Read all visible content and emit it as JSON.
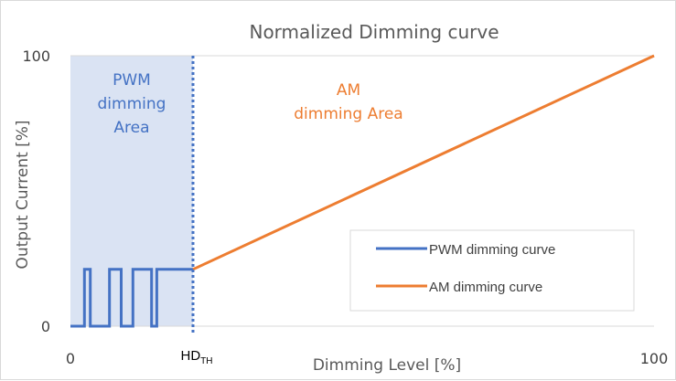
{
  "chart_data": {
    "type": "line",
    "title": "Normalized Dimming curve",
    "xlabel": "Dimming Level [%]",
    "ylabel": "Output Current [%]",
    "xlim": [
      0,
      100
    ],
    "ylim": [
      0,
      100
    ],
    "x_ticks": [
      {
        "value": 0,
        "label": "0"
      },
      {
        "value": 100,
        "label": "100"
      }
    ],
    "y_ticks": [
      {
        "value": 0,
        "label": "0"
      },
      {
        "value": 100,
        "label": "100"
      }
    ],
    "threshold": {
      "value": 21,
      "label_main": "HD",
      "label_sub": "TH"
    },
    "regions": {
      "pwm": {
        "lines": [
          "PWM",
          "dimming",
          "Area"
        ],
        "color": "#4472c4",
        "fill": "#dae3f3"
      },
      "am": {
        "lines": [
          "AM",
          "dimming Area"
        ],
        "color": "#ed7d31"
      }
    },
    "series": [
      {
        "name": "PWM dimming curve",
        "color": "#4472c4",
        "x": [
          0,
          2.4,
          2.4,
          3.4,
          3.4,
          6.7,
          6.7,
          8.7,
          8.7,
          10.7,
          10.7,
          13.9,
          13.9,
          14.8,
          14.8,
          21
        ],
        "y": [
          0,
          0,
          21,
          21,
          0,
          0,
          21,
          21,
          0,
          0,
          21,
          21,
          0,
          0,
          21,
          21
        ]
      },
      {
        "name": "AM dimming curve",
        "color": "#ed7d31",
        "x": [
          21,
          100
        ],
        "y": [
          21,
          100
        ]
      }
    ],
    "legend": {
      "position": "bottom-right",
      "entries": [
        "PWM dimming curve",
        "AM dimming curve"
      ]
    }
  }
}
